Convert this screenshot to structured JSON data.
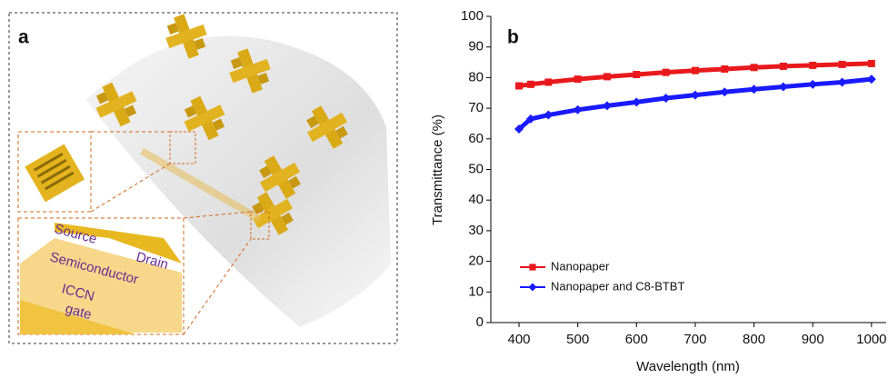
{
  "panel_a": {
    "label": "a",
    "labels": [
      "Source",
      "Drain",
      "Semiconductor",
      "ICCN",
      "gate"
    ]
  },
  "chart_data": {
    "type": "line",
    "panel_label": "b",
    "x_label": "Wavelength (nm)",
    "y_label": "Transmittance (%)",
    "x": [
      400,
      420,
      450,
      500,
      550,
      600,
      650,
      700,
      750,
      800,
      850,
      900,
      950,
      1000
    ],
    "series": [
      {
        "name": "Nanopaper",
        "color": "#e8191c",
        "marker": "square",
        "values": [
          77.3,
          77.8,
          78.5,
          79.5,
          80.3,
          81,
          81.7,
          82.3,
          82.8,
          83.3,
          83.7,
          84,
          84.3,
          84.6
        ]
      },
      {
        "name": "Nanopaper and C8-BTBT",
        "color": "#1a1aff",
        "marker": "diamond",
        "values": [
          63.2,
          66.5,
          67.8,
          69.5,
          70.8,
          72,
          73.3,
          74.3,
          75.3,
          76.2,
          77,
          77.8,
          78.5,
          79.5
        ]
      }
    ],
    "xlim": [
      352,
      1025
    ],
    "xticks": [
      400,
      500,
      600,
      700,
      800,
      900,
      1000
    ],
    "ylim": [
      0,
      100
    ],
    "yticks": [
      0,
      10,
      20,
      30,
      40,
      50,
      60,
      70,
      80,
      90,
      100
    ],
    "legend": "lower left"
  }
}
